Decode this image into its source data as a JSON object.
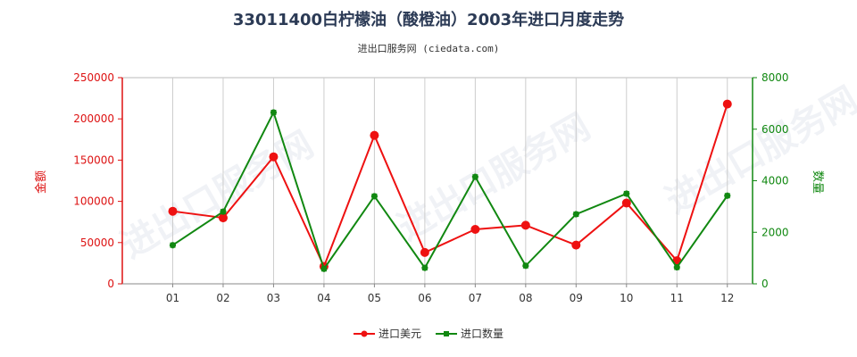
{
  "chart_data": {
    "type": "line",
    "title": "33011400白柠檬油（酸橙油）2003年进口月度走势",
    "subtitle": "进出口服务网 (ciedata.com)",
    "categories": [
      "01",
      "02",
      "03",
      "04",
      "05",
      "06",
      "07",
      "08",
      "09",
      "10",
      "11",
      "12"
    ],
    "y_left": {
      "label": "金额",
      "ylim": [
        0,
        250000
      ],
      "ticks": [
        "0",
        "50000",
        "100000",
        "150000",
        "200000",
        "250000"
      ],
      "color": "#dd1111"
    },
    "y_right": {
      "label": "数量",
      "ylim": [
        0,
        8000
      ],
      "ticks": [
        "0",
        "2000",
        "4000",
        "6000",
        "8000"
      ],
      "color": "#118811"
    },
    "series": [
      {
        "name": "进口美元",
        "axis": "left",
        "color": "#ee1111",
        "values": [
          88000,
          80000,
          154000,
          21000,
          180000,
          38000,
          66000,
          71000,
          47000,
          98000,
          28000,
          218000
        ]
      },
      {
        "name": "进口数量",
        "axis": "right",
        "color": "#118811",
        "values": [
          1500,
          2800,
          6650,
          580,
          3400,
          620,
          4150,
          700,
          2700,
          3500,
          640,
          3420
        ]
      }
    ],
    "grid": "vertical",
    "legend_position": "bottom-center",
    "watermark": "进出口服务网"
  }
}
